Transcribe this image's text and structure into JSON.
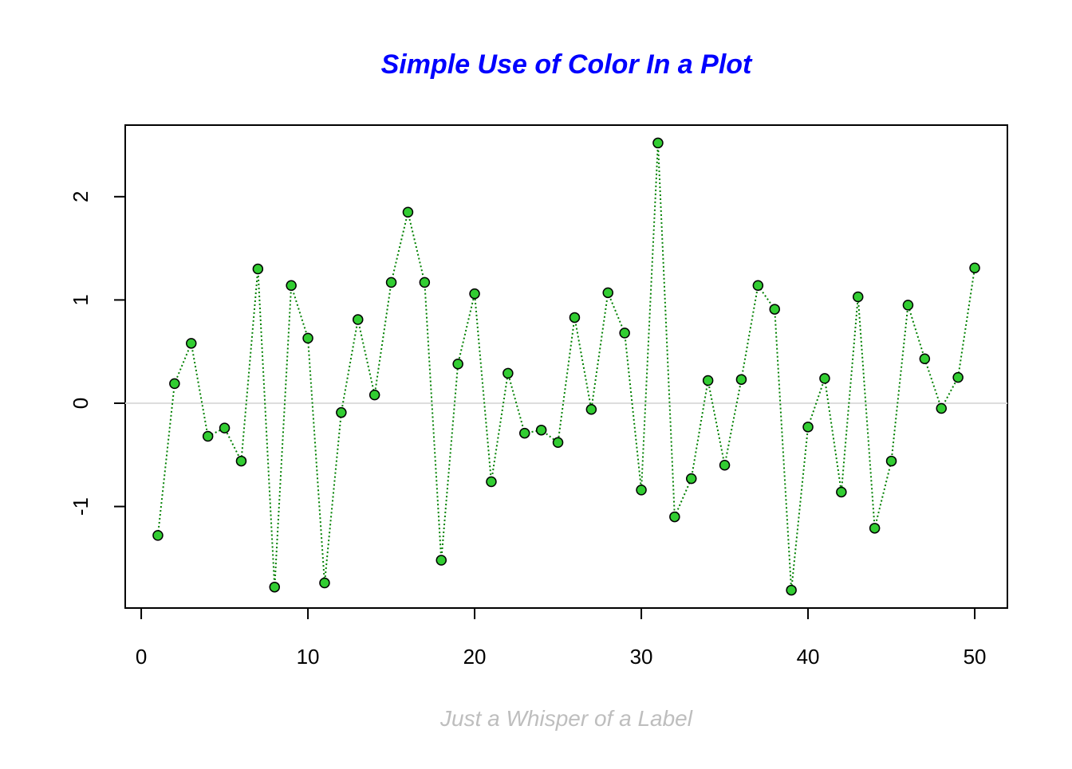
{
  "chart_data": {
    "type": "line",
    "title": "Simple Use of Color In a Plot",
    "x_label": "Just a Whisper of a Label",
    "x": [
      1,
      2,
      3,
      4,
      5,
      6,
      7,
      8,
      9,
      10,
      11,
      12,
      13,
      14,
      15,
      16,
      17,
      18,
      19,
      20,
      21,
      22,
      23,
      24,
      25,
      26,
      27,
      28,
      29,
      30,
      31,
      32,
      33,
      34,
      35,
      36,
      37,
      38,
      39,
      40,
      41,
      42,
      43,
      44,
      45,
      46,
      47,
      48,
      49,
      50
    ],
    "values": [
      -1.28,
      0.19,
      0.58,
      -0.32,
      -0.24,
      -0.56,
      1.3,
      -1.78,
      1.14,
      0.63,
      -1.74,
      -0.09,
      0.81,
      0.08,
      1.17,
      1.85,
      1.17,
      -1.52,
      0.38,
      1.06,
      -0.76,
      0.29,
      -0.29,
      -0.26,
      -0.38,
      0.83,
      -0.06,
      1.07,
      0.68,
      -0.84,
      2.52,
      -1.1,
      -0.73,
      0.22,
      -0.6,
      0.23,
      1.14,
      0.91,
      -1.81,
      -0.23,
      0.24,
      -0.86,
      1.03,
      -1.21,
      -0.56,
      0.95,
      0.43,
      -0.05,
      0.25,
      1.31
    ],
    "line_color": "#008000",
    "marker_color": "#32cd32",
    "reference_line_color": "#dddddd",
    "reference_line": 0,
    "xlim": [
      -0.96,
      51.96
    ],
    "ylim": [
      -1.983,
      2.693
    ],
    "xticks": [
      0,
      10,
      20,
      30,
      40,
      50
    ],
    "yticks": [
      -1,
      0,
      1,
      2
    ]
  }
}
